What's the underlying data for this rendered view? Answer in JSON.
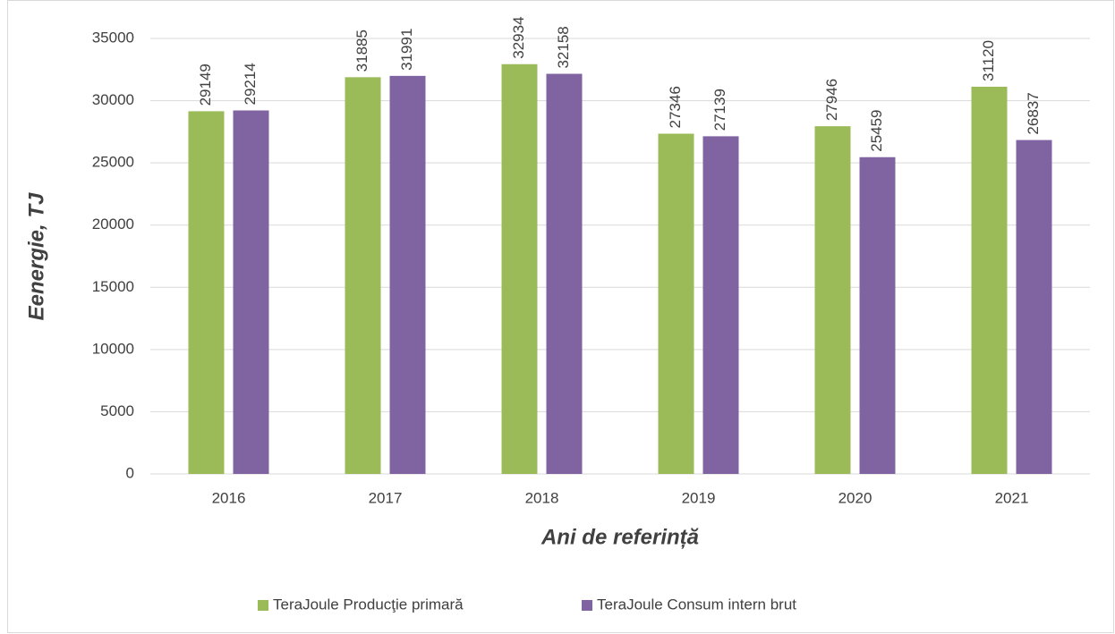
{
  "chart_data": {
    "type": "bar",
    "xlabel": "Ani de referință",
    "ylabel": "Eenergie, TJ",
    "categories": [
      "2016",
      "2017",
      "2018",
      "2019",
      "2020",
      "2021"
    ],
    "series": [
      {
        "name": "TeraJoule Producţie primară",
        "color": "#9bbb59",
        "values": [
          29149,
          31885,
          32934,
          27346,
          27946,
          31120
        ]
      },
      {
        "name": "TeraJoule Consum intern brut",
        "color": "#8064a2",
        "values": [
          29214,
          31991,
          32158,
          27139,
          25459,
          26837
        ]
      }
    ],
    "ylim": [
      0,
      35000
    ],
    "yticks": [
      0,
      5000,
      10000,
      15000,
      20000,
      25000,
      30000,
      35000
    ],
    "grid": true,
    "legend": "bottom"
  }
}
